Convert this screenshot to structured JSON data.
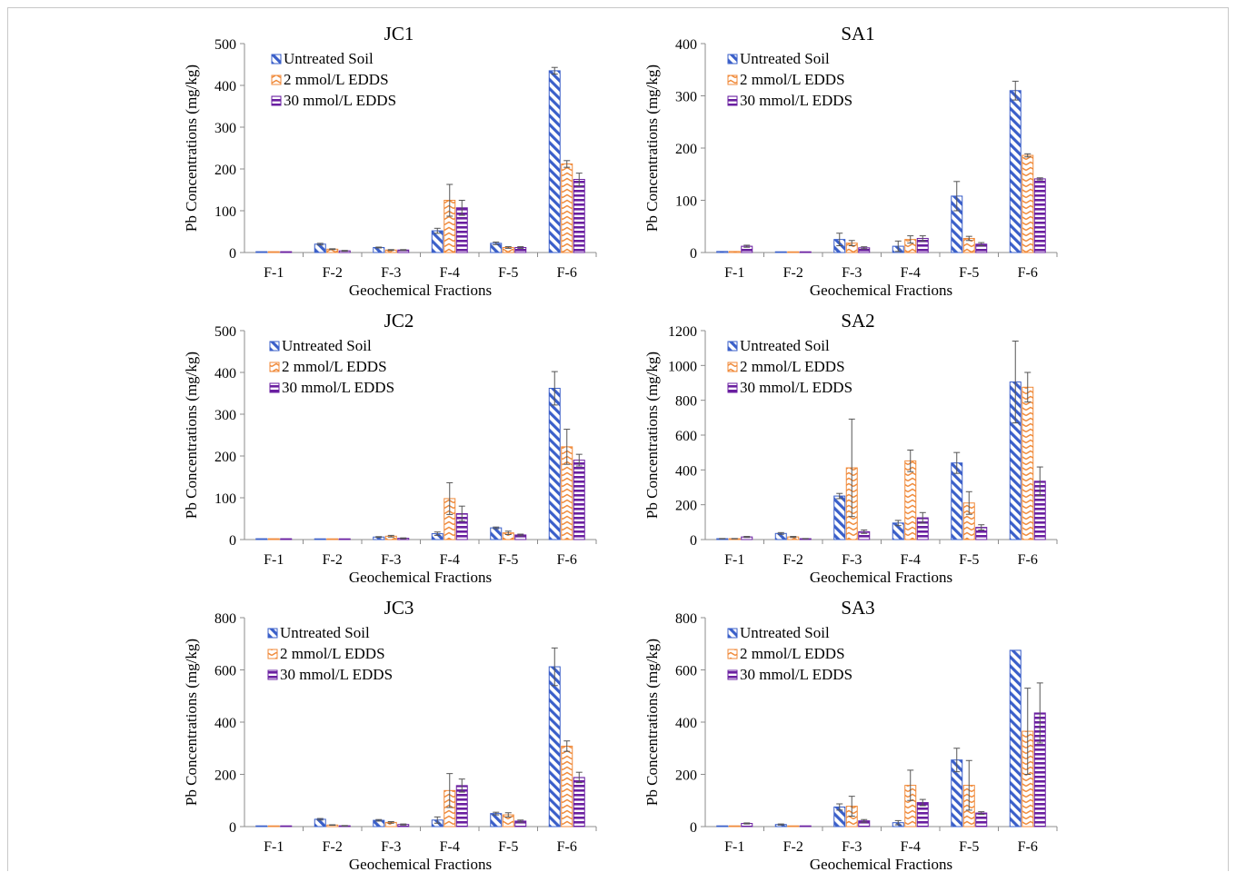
{
  "legend": [
    "Untreated Soil",
    "2 mmol/L EDDS",
    "30 mmol/L EDDS"
  ],
  "colors": {
    "untreated": "#3a5fc9",
    "edds2": "#f08a3a",
    "edds30": "#6a1fa0",
    "error": "#555555",
    "axis": "#8c8c8c"
  },
  "chart_data": [
    {
      "type": "bar",
      "title": "JC1",
      "xlabel": "Geochemical Fractions",
      "ylabel": "Pb Concentrations (mg/kg)",
      "ylim": [
        0,
        500
      ],
      "yticks": [
        0,
        100,
        200,
        300,
        400,
        500
      ],
      "categories": [
        "F-1",
        "F-2",
        "F-3",
        "F-4",
        "F-5",
        "F-6"
      ],
      "series": [
        {
          "name": "Untreated Soil",
          "values": [
            2,
            20,
            12,
            52,
            22,
            435
          ],
          "errors": [
            0,
            2,
            1,
            6,
            3,
            8
          ]
        },
        {
          "name": "2 mmol/L EDDS",
          "values": [
            2,
            8,
            6,
            125,
            12,
            212
          ],
          "errors": [
            0,
            1,
            1,
            38,
            2,
            8
          ]
        },
        {
          "name": "30 mmol/L EDDS",
          "values": [
            2,
            4,
            6,
            107,
            12,
            175
          ],
          "errors": [
            0,
            1,
            1,
            18,
            2,
            15
          ]
        }
      ]
    },
    {
      "type": "bar",
      "title": "SA1",
      "xlabel": "Geochemical Fractions",
      "ylabel": "Pb Concentrations (mg/kg)",
      "ylim": [
        0,
        400
      ],
      "yticks": [
        0,
        100,
        200,
        300,
        400
      ],
      "categories": [
        "F-1",
        "F-2",
        "F-3",
        "F-4",
        "F-5",
        "F-6"
      ],
      "series": [
        {
          "name": "Untreated Soil",
          "values": [
            2,
            1,
            25,
            12,
            108,
            310
          ],
          "errors": [
            0,
            0,
            12,
            10,
            28,
            18
          ]
        },
        {
          "name": "2 mmol/L EDDS",
          "values": [
            2,
            1,
            18,
            25,
            27,
            186
          ],
          "errors": [
            0,
            0,
            5,
            7,
            4,
            3
          ]
        },
        {
          "name": "30 mmol/L EDDS",
          "values": [
            12,
            1,
            9,
            27,
            16,
            141
          ],
          "errors": [
            2,
            0,
            2,
            5,
            3,
            2
          ]
        }
      ]
    },
    {
      "type": "bar",
      "title": "JC2",
      "xlabel": "Geochemical Fractions",
      "ylabel": "Pb Concentrations (mg/kg)",
      "ylim": [
        0,
        500
      ],
      "yticks": [
        0,
        100,
        200,
        300,
        400,
        500
      ],
      "categories": [
        "F-1",
        "F-2",
        "F-3",
        "F-4",
        "F-5",
        "F-6"
      ],
      "series": [
        {
          "name": "Untreated Soil",
          "values": [
            2,
            1,
            6,
            14,
            28,
            362
          ],
          "errors": [
            0,
            0,
            1,
            4,
            2,
            40
          ]
        },
        {
          "name": "2 mmol/L EDDS",
          "values": [
            2,
            1,
            8,
            98,
            16,
            222
          ],
          "errors": [
            0,
            0,
            2,
            38,
            4,
            42
          ]
        },
        {
          "name": "30 mmol/L EDDS",
          "values": [
            2,
            1,
            3,
            62,
            11,
            190
          ],
          "errors": [
            0,
            0,
            1,
            18,
            2,
            14
          ]
        }
      ]
    },
    {
      "type": "bar",
      "title": "SA2",
      "xlabel": "Geochemical Fractions",
      "ylabel": "Pb Concentrations (mg/kg)",
      "ylim": [
        0,
        1200
      ],
      "yticks": [
        0,
        200,
        400,
        600,
        800,
        1000,
        1200
      ],
      "categories": [
        "F-1",
        "F-2",
        "F-3",
        "F-4",
        "F-5",
        "F-6"
      ],
      "series": [
        {
          "name": "Untreated Soil",
          "values": [
            5,
            35,
            250,
            95,
            440,
            905
          ],
          "errors": [
            1,
            5,
            15,
            15,
            60,
            235
          ]
        },
        {
          "name": "2 mmol/L EDDS",
          "values": [
            5,
            15,
            412,
            452,
            210,
            875
          ],
          "errors": [
            1,
            3,
            280,
            62,
            65,
            85
          ]
        },
        {
          "name": "30 mmol/L EDDS",
          "values": [
            15,
            5,
            45,
            125,
            70,
            335
          ],
          "errors": [
            3,
            1,
            10,
            30,
            15,
            82
          ]
        }
      ]
    },
    {
      "type": "bar",
      "title": "JC3",
      "xlabel": "Geochemical Fractions",
      "ylabel": "Pb Concentrations (mg/kg)",
      "ylim": [
        0,
        800
      ],
      "yticks": [
        0,
        200,
        400,
        600,
        800
      ],
      "categories": [
        "F-1",
        "F-2",
        "F-3",
        "F-4",
        "F-5",
        "F-6"
      ],
      "series": [
        {
          "name": "Untreated Soil",
          "values": [
            2,
            28,
            24,
            25,
            50,
            612
          ],
          "errors": [
            0,
            3,
            3,
            12,
            5,
            72
          ]
        },
        {
          "name": "2 mmol/L EDDS",
          "values": [
            2,
            6,
            16,
            138,
            45,
            308
          ],
          "errors": [
            0,
            1,
            3,
            65,
            8,
            20
          ]
        },
        {
          "name": "30 mmol/L EDDS",
          "values": [
            2,
            3,
            8,
            157,
            21,
            188
          ],
          "errors": [
            0,
            1,
            2,
            25,
            4,
            20
          ]
        }
      ]
    },
    {
      "type": "bar",
      "title": "SA3",
      "xlabel": "Geochemical Fractions",
      "ylabel": "Pb Concentrations (mg/kg)",
      "ylim": [
        0,
        800
      ],
      "yticks": [
        0,
        200,
        400,
        600,
        800
      ],
      "categories": [
        "F-1",
        "F-2",
        "F-3",
        "F-4",
        "F-5",
        "F-6"
      ],
      "series": [
        {
          "name": "Untreated Soil",
          "values": [
            2,
            8,
            75,
            15,
            255,
            675
          ],
          "errors": [
            0,
            2,
            12,
            8,
            45,
            0
          ]
        },
        {
          "name": "2 mmol/L EDDS",
          "values": [
            2,
            2,
            78,
            158,
            158,
            365
          ],
          "errors": [
            0,
            0,
            38,
            58,
            95,
            165
          ]
        },
        {
          "name": "30 mmol/L EDDS",
          "values": [
            12,
            2,
            22,
            92,
            52,
            435
          ],
          "errors": [
            2,
            0,
            5,
            12,
            5,
            115
          ]
        }
      ]
    }
  ]
}
